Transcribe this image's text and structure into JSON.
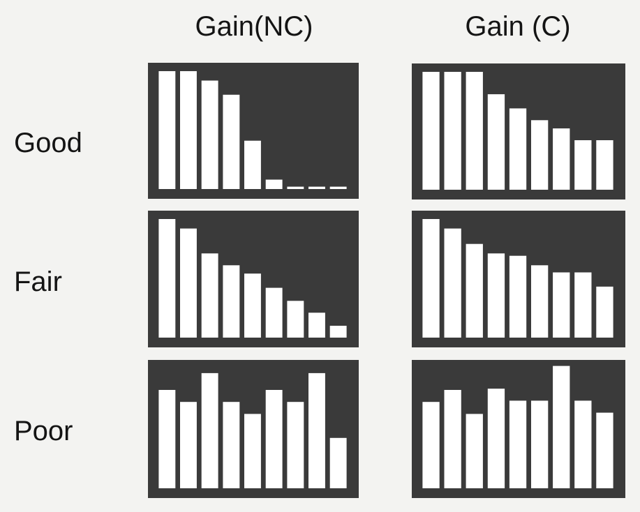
{
  "chart_data": {
    "type": "bar",
    "columns": [
      "Gain(NC)",
      "Gain (C)"
    ],
    "rows": [
      "Good",
      "Fair",
      "Poor"
    ],
    "ylim": [
      0,
      100
    ],
    "colors": {
      "panel": "#3a3a3a",
      "bar": "#ffffff",
      "background": "#f3f3f1"
    },
    "panels": [
      {
        "row": "Good",
        "column": "Gain(NC)",
        "values": [
          100,
          100,
          92,
          80,
          41,
          8,
          2,
          2,
          2
        ]
      },
      {
        "row": "Good",
        "column": "Gain (C)",
        "values": [
          100,
          100,
          100,
          81,
          69,
          59,
          52,
          42,
          42
        ]
      },
      {
        "row": "Fair",
        "column": "Gain(NC)",
        "values": [
          100,
          92,
          71,
          61,
          54,
          42,
          31,
          21,
          10
        ]
      },
      {
        "row": "Fair",
        "column": "Gain (C)",
        "values": [
          100,
          92,
          79,
          71,
          69,
          61,
          55,
          55,
          43
        ]
      },
      {
        "row": "Poor",
        "column": "Gain(NC)",
        "values": [
          82,
          72,
          96,
          72,
          62,
          82,
          72,
          96,
          42
        ]
      },
      {
        "row": "Poor",
        "column": "Gain (C)",
        "values": [
          72,
          82,
          62,
          83,
          73,
          73,
          102,
          73,
          63
        ]
      }
    ]
  }
}
